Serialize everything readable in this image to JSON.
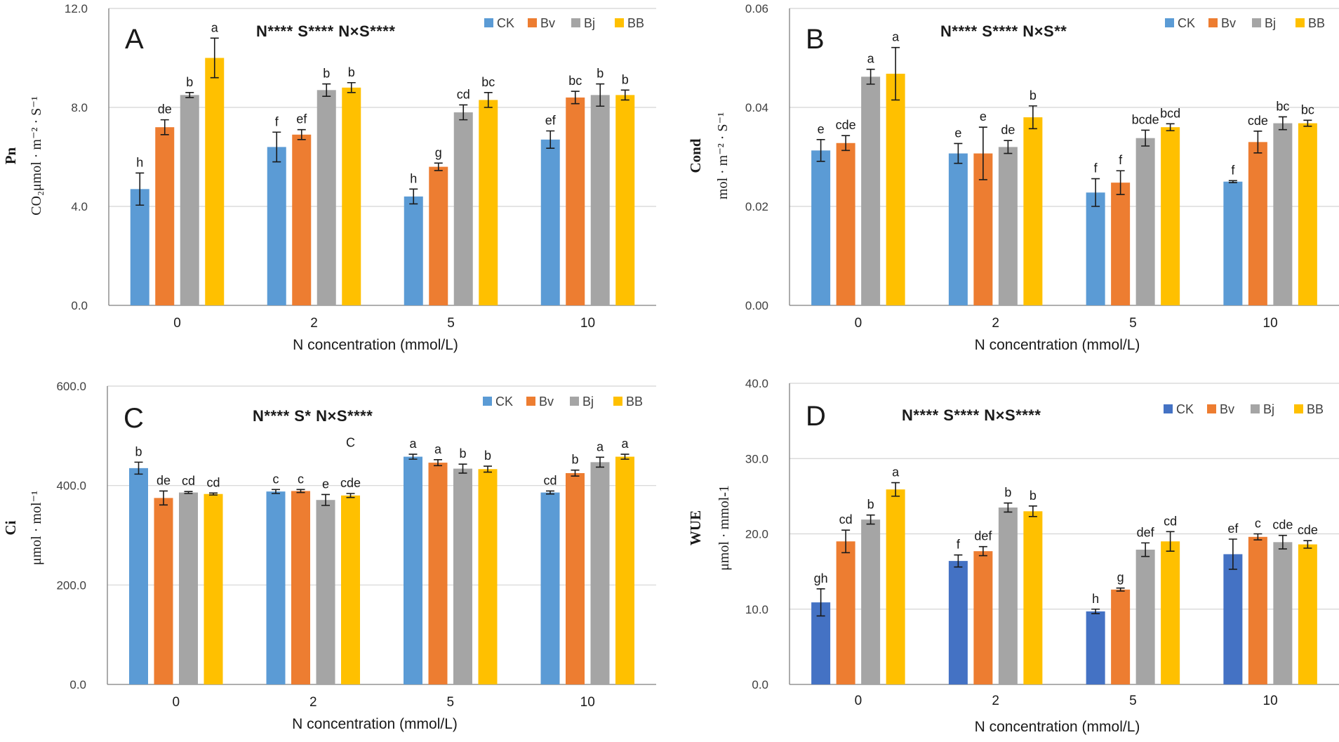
{
  "chart_data": [
    {
      "type": "bar",
      "panel": "A",
      "categories": [
        "0",
        "2",
        "5",
        "10"
      ],
      "xlabel": "N concentration (mmol/L)",
      "ylabel_title": "Pn",
      "ylabel_unit": "CO₂μmol · m⁻² · S⁻¹",
      "ylim": [
        0,
        12
      ],
      "yticks": [
        "0.0",
        "4.0",
        "8.0",
        "12.0"
      ],
      "significance": "N**** S**** N×S****",
      "legend": [
        "CK",
        "Bv",
        "Bj",
        "BB"
      ],
      "series": [
        {
          "name": "CK",
          "color": "#5b9bd5",
          "values": [
            4.7,
            6.4,
            4.4,
            6.7
          ],
          "errors": [
            0.65,
            0.6,
            0.3,
            0.35
          ],
          "labels": [
            "h",
            "f",
            "h",
            "ef"
          ]
        },
        {
          "name": "Bv",
          "color": "#ed7d31",
          "values": [
            7.2,
            6.9,
            5.6,
            8.4
          ],
          "errors": [
            0.3,
            0.2,
            0.15,
            0.25
          ],
          "labels": [
            "de",
            "ef",
            "g",
            "bc"
          ]
        },
        {
          "name": "Bj",
          "color": "#a5a5a5",
          "values": [
            8.5,
            8.7,
            7.8,
            8.5
          ],
          "errors": [
            0.1,
            0.25,
            0.3,
            0.45
          ],
          "labels": [
            "b",
            "b",
            "cd",
            "b"
          ]
        },
        {
          "name": "BB",
          "color": "#ffc000",
          "values": [
            10.0,
            8.8,
            8.3,
            8.5
          ],
          "errors": [
            0.8,
            0.2,
            0.3,
            0.2
          ],
          "labels": [
            "a",
            "b",
            "bc",
            "b"
          ]
        }
      ],
      "extra_labels": []
    },
    {
      "type": "bar",
      "panel": "B",
      "categories": [
        "0",
        "2",
        "5",
        "10"
      ],
      "xlabel": "N concentration (mmol/L)",
      "ylabel_title": "Cond",
      "ylabel_unit": "mol · m⁻² · S⁻¹",
      "ylim": [
        0,
        0.06
      ],
      "yticks": [
        "0.00",
        "0.02",
        "0.04",
        "0.06"
      ],
      "significance": "N**** S**** N×S**",
      "legend": [
        "CK",
        "Bv",
        "Bj",
        "BB"
      ],
      "series": [
        {
          "name": "CK",
          "color": "#5b9bd5",
          "values": [
            0.0313,
            0.0307,
            0.0228,
            0.025
          ],
          "errors": [
            0.0022,
            0.002,
            0.0028,
            0.0002
          ],
          "labels": [
            "e",
            "e",
            "f",
            "f"
          ]
        },
        {
          "name": "Bv",
          "color": "#ed7d31",
          "values": [
            0.0328,
            0.0307,
            0.0248,
            0.033
          ],
          "errors": [
            0.0015,
            0.0053,
            0.0024,
            0.0022
          ],
          "labels": [
            "cde",
            "e",
            "f",
            "cde"
          ]
        },
        {
          "name": "Bj",
          "color": "#a5a5a5",
          "values": [
            0.0462,
            0.032,
            0.0338,
            0.0368
          ],
          "errors": [
            0.0015,
            0.0013,
            0.0016,
            0.0013
          ],
          "labels": [
            "a",
            "de",
            "bcde",
            "bc"
          ]
        },
        {
          "name": "BB",
          "color": "#ffc000",
          "values": [
            0.0468,
            0.038,
            0.036,
            0.0368
          ],
          "errors": [
            0.0053,
            0.0023,
            0.0007,
            0.0006
          ],
          "labels": [
            "a",
            "b",
            "bcd",
            "bc"
          ]
        }
      ],
      "extra_labels": []
    },
    {
      "type": "bar",
      "panel": "C",
      "categories": [
        "0",
        "2",
        "5",
        "10"
      ],
      "xlabel": "N concentration (mmol/L)",
      "ylabel_title": "Ci",
      "ylabel_unit": "μmol · mol⁻¹",
      "ylim": [
        0,
        600
      ],
      "yticks": [
        "0.0",
        "200.0",
        "400.0",
        "600.0"
      ],
      "significance": "N**** S* N×S****",
      "legend": [
        "CK",
        "Bv",
        "Bj",
        "BB"
      ],
      "series": [
        {
          "name": "CK",
          "color": "#5b9bd5",
          "values": [
            435,
            388,
            458,
            386
          ],
          "errors": [
            12,
            4,
            5,
            3
          ],
          "labels": [
            "b",
            "c",
            "a",
            "cd"
          ]
        },
        {
          "name": "Bv",
          "color": "#ed7d31",
          "values": [
            375,
            389,
            446,
            425
          ],
          "errors": [
            14,
            3,
            6,
            6
          ],
          "labels": [
            "de",
            "c",
            "a",
            "b"
          ]
        },
        {
          "name": "Bj",
          "color": "#a5a5a5",
          "values": [
            386,
            371,
            434,
            447
          ],
          "errors": [
            2,
            11,
            9,
            10
          ],
          "labels": [
            "cd",
            "e",
            "b",
            "a"
          ]
        },
        {
          "name": "BB",
          "color": "#ffc000",
          "values": [
            383,
            380,
            433,
            458
          ],
          "errors": [
            2,
            4,
            6,
            5
          ],
          "labels": [
            "cd",
            "cde",
            "b",
            "a"
          ]
        }
      ],
      "extra_labels": [
        {
          "text": "C",
          "group": 1,
          "bar": 3,
          "value": 478
        }
      ]
    },
    {
      "type": "bar",
      "panel": "D",
      "categories": [
        "0",
        "2",
        "5",
        "10"
      ],
      "xlabel": "N concentration (mmol/L)",
      "ylabel_title": "WUE",
      "ylabel_unit": "μmol · mmol-1",
      "ylim": [
        0,
        40
      ],
      "yticks": [
        "0.0",
        "10.0",
        "20.0",
        "30.0",
        "40.0"
      ],
      "significance": "N**** S**** N×S****",
      "legend": [
        "CK",
        "Bv",
        "Bj",
        "BB"
      ],
      "series": [
        {
          "name": "CK",
          "color": "#4472c4",
          "values": [
            10.9,
            16.4,
            9.7,
            17.3
          ],
          "errors": [
            1.8,
            0.8,
            0.3,
            2.0
          ],
          "labels": [
            "gh",
            "f",
            "h",
            "ef"
          ]
        },
        {
          "name": "Bv",
          "color": "#ed7d31",
          "values": [
            19.0,
            17.7,
            12.6,
            19.6
          ],
          "errors": [
            1.5,
            0.6,
            0.2,
            0.4
          ],
          "labels": [
            "cd",
            "def",
            "g",
            "c"
          ]
        },
        {
          "name": "Bj",
          "color": "#a5a5a5",
          "values": [
            21.9,
            23.5,
            17.9,
            18.9
          ],
          "errors": [
            0.6,
            0.6,
            0.9,
            0.9
          ],
          "labels": [
            "b",
            "b",
            "def",
            "cde"
          ]
        },
        {
          "name": "BB",
          "color": "#ffc000",
          "values": [
            25.9,
            23.0,
            19.0,
            18.6
          ],
          "errors": [
            0.9,
            0.7,
            1.3,
            0.5
          ],
          "labels": [
            "a",
            "b",
            "cd",
            "cde"
          ]
        }
      ],
      "extra_labels": []
    }
  ]
}
